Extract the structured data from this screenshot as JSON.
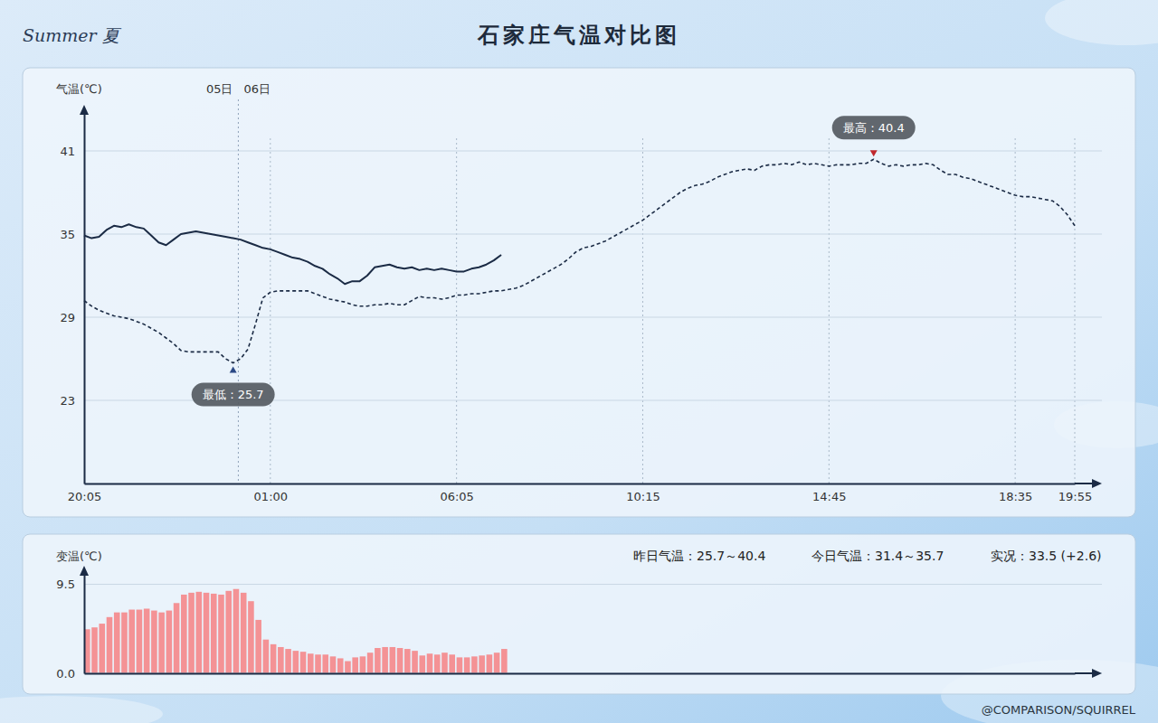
{
  "page": {
    "logo": "Summer 夏",
    "credit": "@COMPARISON/SQUIRREL"
  },
  "chart_data": [
    {
      "type": "line",
      "title": "石家庄气温对比图",
      "y_label": "气温(℃)",
      "categories": [
        "20:05",
        null,
        null,
        null,
        null,
        null,
        null,
        null,
        null,
        null,
        null,
        null,
        null,
        null,
        null,
        null,
        null,
        null,
        null,
        null,
        null,
        null,
        null,
        null,
        null,
        "01:00",
        null,
        null,
        null,
        null,
        null,
        null,
        null,
        null,
        null,
        null,
        null,
        null,
        null,
        null,
        null,
        null,
        null,
        null,
        null,
        null,
        null,
        null,
        null,
        null,
        "06:05",
        null,
        null,
        null,
        null,
        null,
        null,
        null,
        null,
        null,
        null,
        null,
        null,
        null,
        null,
        null,
        null,
        null,
        null,
        null,
        null,
        null,
        null,
        null,
        null,
        "10:15",
        null,
        null,
        null,
        null,
        null,
        null,
        null,
        null,
        null,
        null,
        null,
        null,
        null,
        null,
        null,
        null,
        null,
        null,
        null,
        null,
        null,
        null,
        null,
        null,
        "14:45",
        null,
        null,
        null,
        null,
        null,
        null,
        null,
        null,
        null,
        null,
        null,
        null,
        null,
        null,
        null,
        null,
        null,
        null,
        null,
        null,
        null,
        null,
        null,
        null,
        "18:35",
        null,
        null,
        null,
        null,
        null,
        null,
        null,
        "19:55"
      ],
      "series": [
        {
          "color": "#1b2b45",
          "line_style": "dashed",
          "values": [
            30.2,
            29.8,
            29.5,
            29.3,
            29.1,
            29.0,
            28.9,
            28.7,
            28.5,
            28.2,
            27.9,
            27.5,
            27.1,
            26.6,
            26.5,
            26.5,
            26.5,
            26.5,
            26.5,
            26.0,
            25.7,
            26.0,
            26.7,
            28.5,
            30.4,
            30.8,
            30.9,
            30.9,
            30.9,
            30.9,
            30.9,
            30.7,
            30.5,
            30.3,
            30.2,
            30.1,
            29.9,
            29.8,
            29.8,
            29.9,
            29.9,
            30.0,
            29.9,
            29.9,
            30.2,
            30.5,
            30.4,
            30.4,
            30.3,
            30.4,
            30.6,
            30.6,
            30.7,
            30.7,
            30.8,
            30.9,
            30.9,
            31.0,
            31.1,
            31.3,
            31.6,
            31.9,
            32.2,
            32.5,
            32.8,
            33.2,
            33.7,
            34.0,
            34.1,
            34.3,
            34.5,
            34.8,
            35.1,
            35.4,
            35.7,
            36.0,
            36.4,
            36.8,
            37.2,
            37.6,
            38.0,
            38.3,
            38.5,
            38.6,
            38.8,
            39.1,
            39.3,
            39.5,
            39.6,
            39.7,
            39.6,
            39.9,
            40.0,
            40.0,
            40.1,
            40.0,
            40.2,
            40.0,
            40.1,
            40.0,
            39.9,
            40.0,
            40.0,
            40.0,
            40.1,
            40.1,
            40.4,
            40.1,
            39.9,
            40.0,
            39.9,
            40.0,
            40.0,
            40.1,
            40.0,
            39.6,
            39.3,
            39.3,
            39.1,
            39.0,
            38.8,
            38.6,
            38.4,
            38.2,
            38.0,
            37.8,
            37.7,
            37.7,
            37.6,
            37.5,
            37.4,
            37.0,
            36.4,
            35.6
          ]
        },
        {
          "color": "#1b2b45",
          "line_style": "solid",
          "values": [
            34.9,
            34.7,
            34.8,
            35.3,
            35.6,
            35.5,
            35.7,
            35.5,
            35.4,
            34.9,
            34.4,
            34.2,
            34.6,
            35.0,
            35.1,
            35.2,
            35.1,
            35.0,
            34.9,
            34.8,
            34.7,
            34.6,
            34.4,
            34.2,
            34.0,
            33.9,
            33.7,
            33.5,
            33.3,
            33.2,
            33.0,
            32.7,
            32.5,
            32.1,
            31.8,
            31.4,
            31.6,
            31.6,
            32.0,
            32.6,
            32.7,
            32.8,
            32.6,
            32.5,
            32.6,
            32.4,
            32.5,
            32.4,
            32.5,
            32.4,
            32.3,
            32.3,
            32.5,
            32.6,
            32.8,
            33.1,
            33.5,
            null,
            null,
            null,
            null,
            null,
            null,
            null,
            null,
            null,
            null,
            null,
            null,
            null,
            null,
            null,
            null,
            null,
            null,
            null,
            null,
            null,
            null,
            null,
            null,
            null,
            null,
            null,
            null,
            null,
            null,
            null,
            null,
            null,
            null,
            null,
            null,
            null,
            null,
            null,
            null,
            null,
            null,
            null,
            null,
            null,
            null,
            null,
            null,
            null,
            null,
            null,
            null,
            null,
            null,
            null,
            null,
            null,
            null,
            null,
            null,
            null,
            null,
            null,
            null,
            null,
            null,
            null,
            null,
            null,
            null,
            null,
            null,
            null,
            null,
            null,
            null,
            null
          ]
        }
      ],
      "ylim": [
        17,
        44
      ],
      "yticks": [
        23,
        29,
        35,
        41
      ],
      "grid": true,
      "divider": {
        "x": 20.7,
        "labels": [
          "05日",
          "06日"
        ]
      },
      "annotations": [
        {
          "text": "最低：25.7",
          "x": 20,
          "y": 25.7
        },
        {
          "text": "最高：40.4",
          "x": 106,
          "y": 40.4
        }
      ]
    },
    {
      "type": "bar",
      "y_label": "变温(℃)",
      "info": [
        "昨日气温：25.7～40.4",
        "今日气温：31.4～35.7",
        "实况：33.5 (+2.6)"
      ],
      "categories": [
        null,
        null,
        null,
        null,
        null,
        null,
        null,
        null,
        null,
        null,
        null,
        null,
        null,
        null,
        null,
        null,
        null,
        null,
        null,
        null,
        null,
        null,
        null,
        null,
        null,
        null,
        null,
        null,
        null,
        null,
        null,
        null,
        null,
        null,
        null,
        null,
        null,
        null,
        null,
        null,
        null,
        null,
        null,
        null,
        null,
        null,
        null,
        null,
        null,
        null,
        null,
        null,
        null,
        null,
        null,
        null,
        null,
        null,
        null,
        null,
        null,
        null,
        null,
        null,
        null,
        null,
        null,
        null,
        null,
        null,
        null,
        null,
        null,
        null,
        null,
        null,
        null,
        null,
        null,
        null,
        null,
        null,
        null,
        null,
        null,
        null,
        null,
        null,
        null,
        null,
        null,
        null,
        null,
        null,
        null,
        null,
        null,
        null,
        null,
        null,
        null,
        null,
        null,
        null,
        null,
        null,
        null,
        null,
        null,
        null,
        null,
        null,
        null,
        null,
        null,
        null,
        null,
        null,
        null,
        null,
        null,
        null,
        null,
        null,
        null,
        null,
        null,
        null,
        null,
        null,
        null,
        null,
        null,
        null
      ],
      "series": [
        {
          "color": "#f48a8c",
          "values": [
            4.7,
            4.9,
            5.3,
            6.0,
            6.5,
            6.5,
            6.8,
            6.8,
            6.9,
            6.7,
            6.5,
            6.7,
            7.5,
            8.4,
            8.6,
            8.7,
            8.6,
            8.5,
            8.4,
            8.8,
            9.0,
            8.6,
            7.7,
            5.7,
            3.6,
            3.1,
            2.8,
            2.6,
            2.4,
            2.3,
            2.1,
            2.0,
            2.0,
            1.8,
            1.6,
            1.3,
            1.7,
            1.8,
            2.2,
            2.7,
            2.8,
            2.8,
            2.7,
            2.6,
            2.4,
            1.9,
            2.1,
            2.0,
            2.2,
            2.0,
            1.7,
            1.7,
            1.8,
            1.9,
            2.0,
            2.2,
            2.6,
            null,
            null,
            null,
            null,
            null,
            null,
            null,
            null,
            null,
            null,
            null,
            null,
            null,
            null,
            null,
            null,
            null,
            null,
            null,
            null,
            null,
            null,
            null,
            null,
            null,
            null,
            null,
            null,
            null,
            null,
            null,
            null,
            null,
            null,
            null,
            null,
            null,
            null,
            null,
            null,
            null,
            null,
            null,
            null,
            null,
            null,
            null,
            null,
            null,
            null,
            null,
            null,
            null,
            null,
            null,
            null,
            null,
            null,
            null,
            null,
            null,
            null,
            null,
            null,
            null,
            null,
            null,
            null,
            null,
            null,
            null,
            null,
            null,
            null,
            null,
            null,
            null
          ]
        }
      ],
      "ylim": [
        0,
        11
      ],
      "yticks": [
        {
          "value": 0,
          "label": "0.0"
        },
        9.5
      ],
      "grid": true,
      "tick_labels": "y"
    }
  ]
}
